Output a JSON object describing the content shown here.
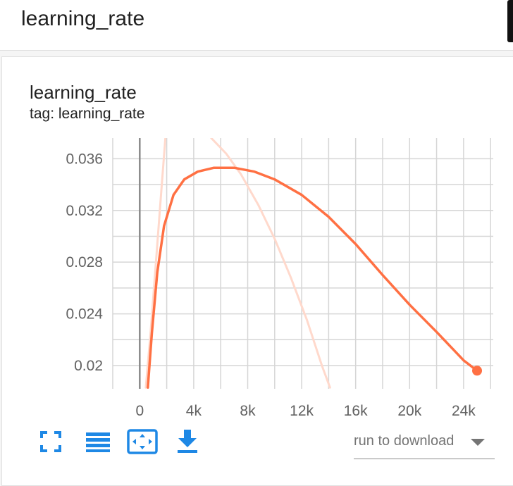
{
  "header": {
    "title": "learning_rate"
  },
  "card": {
    "title": "learning_rate",
    "tag": "tag: learning_rate"
  },
  "chart_data": {
    "type": "line",
    "title": "learning_rate",
    "xlabel": "",
    "ylabel": "",
    "xlim": [
      -2000,
      26200
    ],
    "ylim": [
      0.0182,
      0.0376
    ],
    "x_ticks": [
      0,
      4000,
      8000,
      12000,
      16000,
      20000,
      24000
    ],
    "x_tick_labels": [
      "0",
      "4k",
      "8k",
      "12k",
      "16k",
      "20k",
      "24k"
    ],
    "y_ticks": [
      0.02,
      0.024,
      0.028,
      0.032,
      0.036
    ],
    "y_tick_labels": [
      "0.02",
      "0.024",
      "0.028",
      "0.032",
      "0.036"
    ],
    "grid": true,
    "series": [
      {
        "role": "smoothed",
        "color": "#ff7043",
        "x": [
          600,
          900,
          1300,
          1800,
          2500,
          3300,
          4300,
          5500,
          7000,
          8500,
          10000,
          12000,
          14000,
          16000,
          18000,
          20000,
          22000,
          24000,
          25000
        ],
        "y": [
          0.0183,
          0.0225,
          0.0272,
          0.0308,
          0.0332,
          0.0344,
          0.035,
          0.0353,
          0.0353,
          0.035,
          0.0344,
          0.0332,
          0.0315,
          0.0294,
          0.027,
          0.0247,
          0.0226,
          0.0204,
          0.0196
        ],
        "end_marker": {
          "x": 25000,
          "y": 0.0196
        }
      },
      {
        "role": "raw",
        "color": "#ffd9cc",
        "x": [
          450,
          800,
          1200,
          1600,
          1900
        ],
        "y": [
          0.0183,
          0.0225,
          0.028,
          0.0335,
          0.0376
        ]
      },
      {
        "role": "raw",
        "color": "#ffd9cc",
        "x": [
          5300,
          6400,
          7500,
          8800,
          10000,
          11200,
          12400,
          13500,
          14100
        ],
        "y": [
          0.0376,
          0.0364,
          0.0348,
          0.0324,
          0.0298,
          0.0268,
          0.0235,
          0.02,
          0.0183
        ]
      }
    ]
  },
  "toolbar": {
    "icons": [
      "fullscreen-icon",
      "data-table-icon",
      "fit-domain-icon",
      "download-icon"
    ],
    "accent_color": "#1e88e5"
  },
  "run_select": {
    "value": "run to download"
  }
}
